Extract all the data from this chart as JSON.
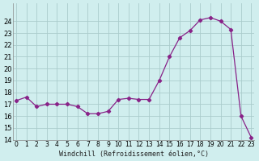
{
  "x": [
    0,
    1,
    2,
    3,
    4,
    5,
    6,
    7,
    8,
    9,
    10,
    11,
    12,
    13,
    14,
    15,
    16,
    17,
    18,
    19,
    20,
    21,
    22,
    23
  ],
  "y": [
    17.3,
    17.6,
    16.8,
    17.0,
    17.0,
    17.0,
    16.8,
    16.2,
    16.2,
    16.4,
    17.4,
    17.5,
    17.4,
    17.4,
    19.0,
    21.0,
    22.6,
    23.2,
    24.1,
    24.3,
    24.0,
    23.3,
    16.0,
    14.2
  ],
  "line_color": "#882288",
  "bg_color": "#d0eeee",
  "grid_color": "#aacccc",
  "xlabel": "Windchill (Refroidissement éolien,°C)",
  "ylim": [
    14,
    25
  ],
  "xlim": [
    0,
    23
  ],
  "yticks": [
    14,
    15,
    16,
    17,
    18,
    19,
    20,
    21,
    22,
    23,
    24
  ],
  "xticks": [
    0,
    1,
    2,
    3,
    4,
    5,
    6,
    7,
    8,
    9,
    10,
    11,
    12,
    13,
    14,
    15,
    16,
    17,
    18,
    19,
    20,
    21,
    22,
    23
  ],
  "xtick_labels": [
    "0",
    "1",
    "2",
    "3",
    "4",
    "5",
    "6",
    "7",
    "8",
    "9",
    "10",
    "11",
    "12",
    "13",
    "14",
    "15",
    "16",
    "17",
    "18",
    "19",
    "20",
    "21",
    "22",
    "23"
  ],
  "ytick_labels": [
    "14",
    "15",
    "16",
    "17",
    "18",
    "19",
    "20",
    "21",
    "22",
    "23",
    "24"
  ]
}
